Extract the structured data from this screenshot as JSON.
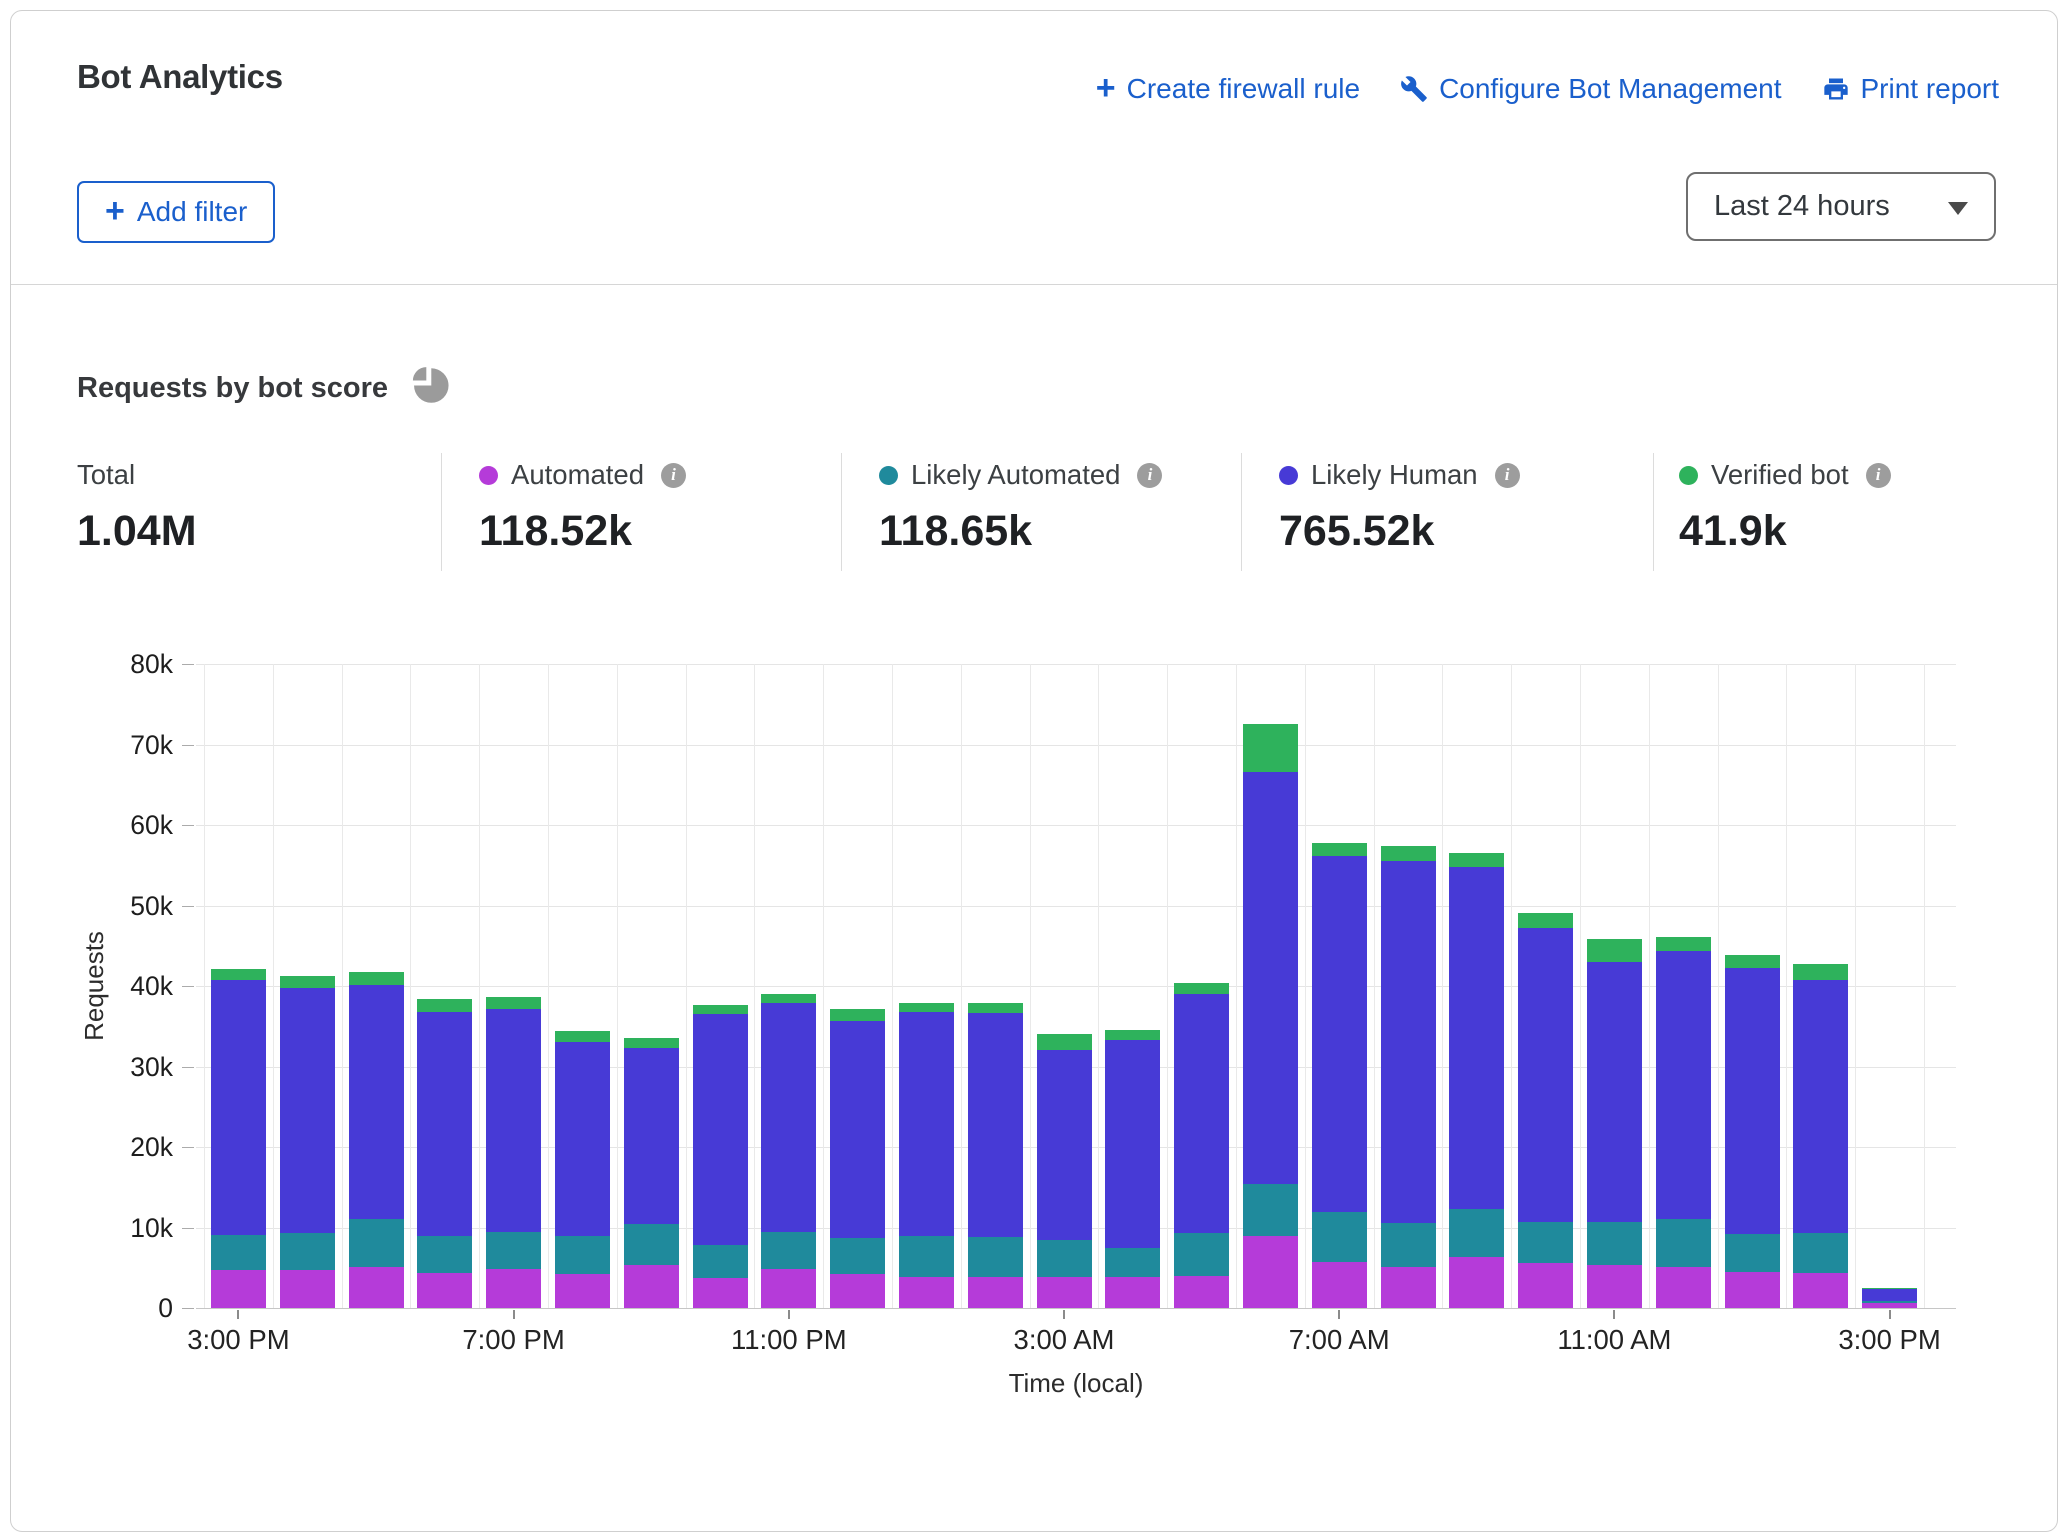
{
  "header": {
    "title": "Bot Analytics",
    "actions": [
      {
        "label": "Create firewall rule",
        "icon": "plus-icon"
      },
      {
        "label": "Configure Bot Management",
        "icon": "wrench-icon"
      },
      {
        "label": "Print report",
        "icon": "printer-icon"
      }
    ],
    "add_filter_label": "Add filter",
    "time_range_value": "Last 24 hours"
  },
  "section": {
    "title": "Requests by bot score"
  },
  "stats": [
    {
      "label": "Total",
      "value": "1.04M",
      "color": ""
    },
    {
      "label": "Automated",
      "value": "118.52k",
      "color": "#B53BD9"
    },
    {
      "label": "Likely Automated",
      "value": "118.65k",
      "color": "#1F8A9C"
    },
    {
      "label": "Likely Human",
      "value": "765.52k",
      "color": "#473AD6"
    },
    {
      "label": "Verified bot",
      "value": "41.9k",
      "color": "#2EB25C"
    }
  ],
  "chart_data": {
    "type": "bar",
    "stacked": true,
    "title": "Requests by bot score",
    "xlabel": "Time (local)",
    "ylabel": "Requests",
    "ylim": [
      0,
      80000
    ],
    "ytick_labels": [
      "80k",
      "70k",
      "60k",
      "50k",
      "40k",
      "30k",
      "20k",
      "10k",
      "0"
    ],
    "x": [
      "3:00 PM",
      "4:00 PM",
      "5:00 PM",
      "6:00 PM",
      "7:00 PM",
      "8:00 PM",
      "9:00 PM",
      "10:00 PM",
      "11:00 PM",
      "12:00 AM",
      "1:00 AM",
      "2:00 AM",
      "3:00 AM",
      "4:00 AM",
      "5:00 AM",
      "6:00 AM",
      "7:00 AM",
      "8:00 AM",
      "9:00 AM",
      "10:00 AM",
      "11:00 AM",
      "12:00 PM",
      "1:00 PM",
      "2:00 PM",
      "3:00 PM"
    ],
    "x_tick_indices": [
      0,
      4,
      8,
      12,
      16,
      20,
      24
    ],
    "x_tick_labels": [
      "3:00 PM",
      "7:00 PM",
      "11:00 PM",
      "3:00 AM",
      "7:00 AM",
      "11:00 AM",
      "3:00 PM"
    ],
    "grid": true,
    "legend_position": "top-stats-row",
    "series": [
      {
        "name": "Automated",
        "color": "#B53BD9",
        "values": [
          4700,
          4700,
          5100,
          4300,
          4800,
          4200,
          5400,
          3700,
          4800,
          4200,
          3800,
          3900,
          3800,
          3900,
          4000,
          8900,
          5700,
          5100,
          6300,
          5600,
          5300,
          5100,
          4500,
          4400,
          600
        ]
      },
      {
        "name": "Likely Automated",
        "color": "#1F8A9C",
        "values": [
          4400,
          4600,
          5900,
          4700,
          4700,
          4800,
          5000,
          4100,
          4700,
          4500,
          5100,
          4900,
          4700,
          3600,
          5300,
          6500,
          6200,
          5400,
          6000,
          5100,
          5400,
          6000,
          4700,
          4900,
          300
        ]
      },
      {
        "name": "Likely Human",
        "color": "#473AD6",
        "values": [
          31600,
          30400,
          29100,
          27800,
          27600,
          24100,
          21900,
          28700,
          28400,
          27000,
          27900,
          27800,
          23600,
          25800,
          29700,
          51200,
          44200,
          45000,
          42500,
          36500,
          32300,
          33200,
          33000,
          31500,
          1500
        ]
      },
      {
        "name": "Verified bot",
        "color": "#2EB25C",
        "values": [
          1400,
          1600,
          1600,
          1600,
          1500,
          1300,
          1200,
          1200,
          1100,
          1400,
          1100,
          1300,
          2000,
          1300,
          1400,
          6000,
          1700,
          1900,
          1700,
          1900,
          2800,
          1800,
          1700,
          2000,
          100
        ]
      }
    ]
  }
}
